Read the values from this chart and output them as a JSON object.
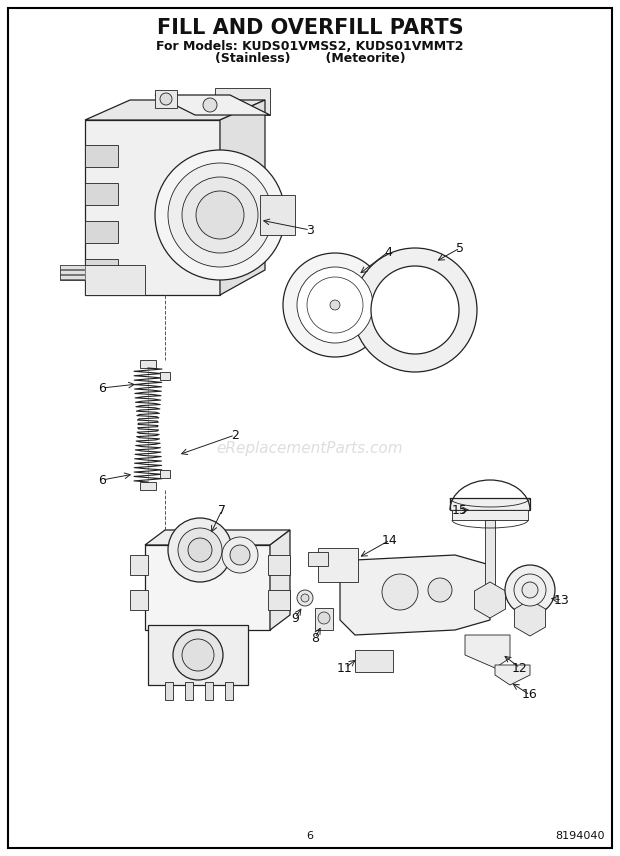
{
  "title_line1": "FILL AND OVERFILL PARTS",
  "title_line2": "For Models: KUDS01VMSS2, KUDS01VMMT2",
  "title_line3": "(Stainless)        (Meteorite)",
  "page_number": "6",
  "doc_number": "8194040",
  "watermark": "eReplacementParts.com",
  "background_color": "#ffffff",
  "border_color": "#000000",
  "title_fontsize": 15,
  "subtitle_fontsize": 9,
  "label_fontsize": 9,
  "footer_fontsize": 8,
  "watermark_color": "#c8c8c8",
  "line_color": "#222222"
}
